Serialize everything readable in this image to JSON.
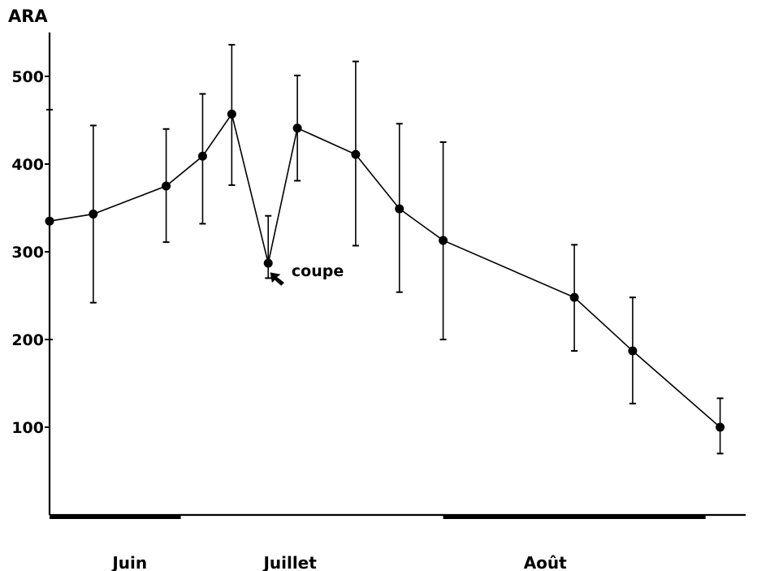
{
  "chart_data": {
    "type": "line",
    "ylabel": "ARA",
    "ylim": [
      0,
      550
    ],
    "yticks": [
      100,
      200,
      300,
      400,
      500
    ],
    "series": [
      {
        "points": [
          {
            "x": 0,
            "y": 335,
            "lo": 200,
            "hi": 462
          },
          {
            "x": 6,
            "y": 343,
            "lo": 242,
            "hi": 444
          },
          {
            "x": 16,
            "y": 375,
            "lo": 311,
            "hi": 440
          },
          {
            "x": 21,
            "y": 409,
            "lo": 332,
            "hi": 480
          },
          {
            "x": 25,
            "y": 457,
            "lo": 376,
            "hi": 536
          },
          {
            "x": 30,
            "y": 287,
            "lo": 270,
            "hi": 341
          },
          {
            "x": 34,
            "y": 441,
            "lo": 381,
            "hi": 501
          },
          {
            "x": 42,
            "y": 411,
            "lo": 307,
            "hi": 517
          },
          {
            "x": 48,
            "y": 349,
            "lo": 254,
            "hi": 446
          },
          {
            "x": 54,
            "y": 313,
            "lo": 200,
            "hi": 425
          },
          {
            "x": 72,
            "y": 248,
            "lo": 187,
            "hi": 308
          },
          {
            "x": 80,
            "y": 187,
            "lo": 127,
            "hi": 248
          },
          {
            "x": 92,
            "y": 100,
            "lo": 70,
            "hi": 133
          }
        ]
      }
    ],
    "months": [
      {
        "label": "Juin",
        "start": 0,
        "end": 18,
        "label_x": 11
      },
      {
        "label": "Juillet",
        "start": 18,
        "end": 54,
        "label_x": 33
      },
      {
        "label": "Août",
        "start": 54,
        "end": 90,
        "label_x": 68
      }
    ],
    "month_bars": [
      {
        "start": 0,
        "end": 18
      },
      {
        "start": 54,
        "end": 90
      }
    ],
    "xlim": [
      0,
      95.5
    ],
    "annotation": {
      "text": "coupe",
      "target_x": 30,
      "target_y": 287,
      "text_x": 33.2,
      "text_y": 272
    }
  }
}
